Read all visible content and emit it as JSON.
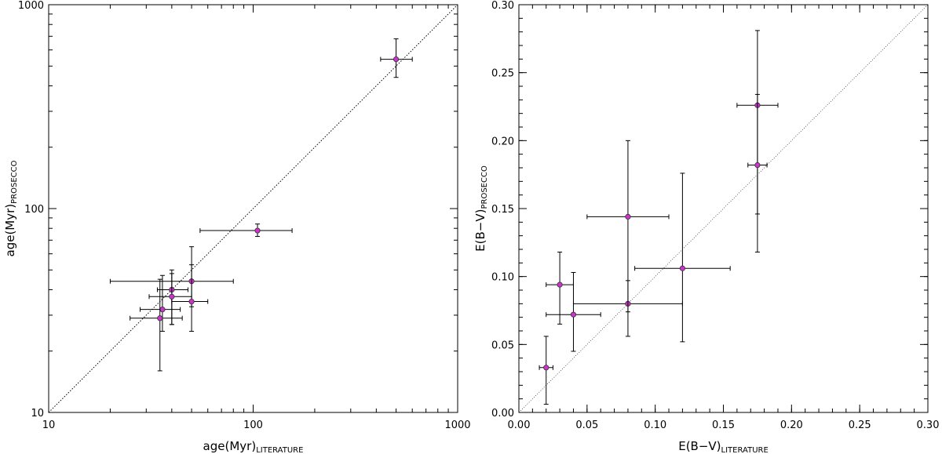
{
  "chart_data": [
    {
      "type": "scatter",
      "xscale": "log",
      "yscale": "log",
      "xlim": [
        10,
        1000
      ],
      "ylim": [
        10,
        1000
      ],
      "x_ticks": [
        "10",
        "100",
        "1000"
      ],
      "y_ticks": [
        "10",
        "100",
        "1000"
      ],
      "xlabel_main": "age(Myr)",
      "xlabel_sub": "LITERATURE",
      "ylabel_main": "age(Myr)",
      "ylabel_sub": "PROSECCO",
      "reference_line": "y = x",
      "marker_color": "#cc33cc",
      "points": [
        {
          "x": 500,
          "xlo": 420,
          "xhi": 600,
          "y": 540,
          "ylo": 440,
          "yhi": 680
        },
        {
          "x": 105,
          "xlo": 55,
          "xhi": 155,
          "y": 78,
          "ylo": 73,
          "yhi": 84
        },
        {
          "x": 50,
          "xlo": 20,
          "xhi": 80,
          "y": 44,
          "ylo": 33,
          "yhi": 65
        },
        {
          "x": 40,
          "xlo": 34,
          "xhi": 48,
          "y": 40,
          "ylo": 27,
          "yhi": 50
        },
        {
          "x": 40,
          "xlo": 31,
          "xhi": 50,
          "y": 37,
          "ylo": 27,
          "yhi": 48
        },
        {
          "x": 50,
          "xlo": 40,
          "xhi": 60,
          "y": 35,
          "ylo": 25,
          "yhi": 53
        },
        {
          "x": 36,
          "xlo": 28,
          "xhi": 44,
          "y": 32,
          "ylo": 25,
          "yhi": 47
        },
        {
          "x": 35,
          "xlo": 25,
          "xhi": 45,
          "y": 29,
          "ylo": 16,
          "yhi": 45
        }
      ]
    },
    {
      "type": "scatter",
      "xlim": [
        0.0,
        0.3
      ],
      "ylim": [
        0.0,
        0.3
      ],
      "x_ticks": [
        "0.00",
        "0.05",
        "0.10",
        "0.15",
        "0.20",
        "0.25",
        "0.30"
      ],
      "y_ticks": [
        "0.00",
        "0.05",
        "0.10",
        "0.15",
        "0.20",
        "0.25",
        "0.30"
      ],
      "xlabel_main": "E(B−V)",
      "xlabel_sub": "LITERATURE",
      "ylabel_main": "E(B−V)",
      "ylabel_sub": "PROSECCO",
      "reference_line": "y = x",
      "marker_color": "#cc33cc",
      "points": [
        {
          "x": 0.02,
          "xlo": 0.015,
          "xhi": 0.025,
          "y": 0.033,
          "ylo": 0.006,
          "yhi": 0.056
        },
        {
          "x": 0.03,
          "xlo": 0.02,
          "xhi": 0.04,
          "y": 0.094,
          "ylo": 0.065,
          "yhi": 0.118
        },
        {
          "x": 0.04,
          "xlo": 0.02,
          "xhi": 0.06,
          "y": 0.072,
          "ylo": 0.045,
          "yhi": 0.103
        },
        {
          "x": 0.08,
          "xlo": 0.04,
          "xhi": 0.12,
          "y": 0.08,
          "ylo": 0.056,
          "yhi": 0.097
        },
        {
          "x": 0.08,
          "xlo": 0.05,
          "xhi": 0.11,
          "y": 0.144,
          "ylo": 0.074,
          "yhi": 0.2
        },
        {
          "x": 0.12,
          "xlo": 0.085,
          "xhi": 0.155,
          "y": 0.106,
          "ylo": 0.052,
          "yhi": 0.176
        },
        {
          "x": 0.175,
          "xlo": 0.16,
          "xhi": 0.19,
          "y": 0.226,
          "ylo": 0.146,
          "yhi": 0.281
        },
        {
          "x": 0.175,
          "xlo": 0.168,
          "xhi": 0.182,
          "y": 0.182,
          "ylo": 0.118,
          "yhi": 0.234
        }
      ]
    }
  ]
}
